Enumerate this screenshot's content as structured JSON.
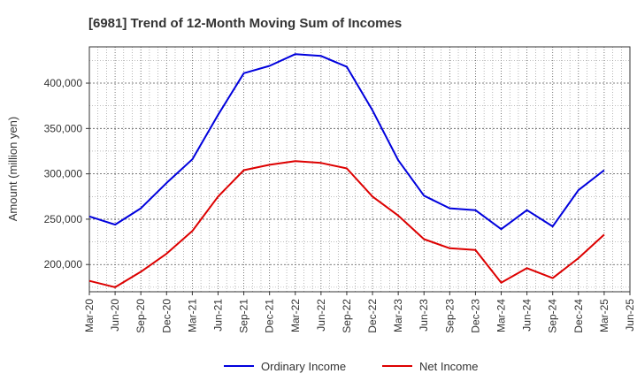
{
  "chart_data": {
    "type": "line",
    "title": "[6981]  Trend of 12-Month Moving Sum of Incomes",
    "xlabel": "",
    "ylabel": "Amount (million yen)",
    "ylim": [
      170000,
      440000
    ],
    "y_ticks": [
      200000,
      250000,
      300000,
      350000,
      400000
    ],
    "y_tick_labels": [
      "200,000",
      "250,000",
      "300,000",
      "350,000",
      "400,000"
    ],
    "grid": true,
    "legend_position": "bottom-center",
    "x_tick_labels": [
      "Mar-20",
      "Jun-20",
      "Sep-20",
      "Dec-20",
      "Mar-21",
      "Jun-21",
      "Sep-21",
      "Dec-21",
      "Mar-22",
      "Jun-22",
      "Sep-22",
      "Dec-22",
      "Mar-23",
      "Jun-23",
      "Sep-23",
      "Dec-23",
      "Mar-24",
      "Jun-24",
      "Sep-24",
      "Dec-24",
      "Mar-25",
      "Jun-25"
    ],
    "categories": [
      "Mar-20",
      "Jun-20",
      "Sep-20",
      "Dec-20",
      "Mar-21",
      "Jun-21",
      "Sep-21",
      "Dec-21",
      "Mar-22",
      "Jun-22",
      "Sep-22",
      "Dec-22",
      "Mar-23",
      "Jun-23",
      "Sep-23",
      "Dec-23",
      "Mar-24",
      "Jun-24",
      "Sep-24",
      "Dec-24",
      "Mar-25"
    ],
    "series": [
      {
        "name": "Ordinary Income",
        "color": "#0000dd",
        "values": [
          253000,
          244000,
          262000,
          290000,
          316000,
          365000,
          411000,
          419000,
          432000,
          430000,
          418000,
          370000,
          315000,
          276000,
          262000,
          260000,
          239000,
          260000,
          242000,
          282000,
          304000
        ]
      },
      {
        "name": "Net Income",
        "color": "#dd0000",
        "values": [
          182000,
          175000,
          192000,
          212000,
          237000,
          275000,
          304000,
          310000,
          314000,
          312000,
          306000,
          275000,
          254000,
          228000,
          218000,
          216000,
          180000,
          196000,
          185000,
          207000,
          233000
        ]
      }
    ]
  }
}
